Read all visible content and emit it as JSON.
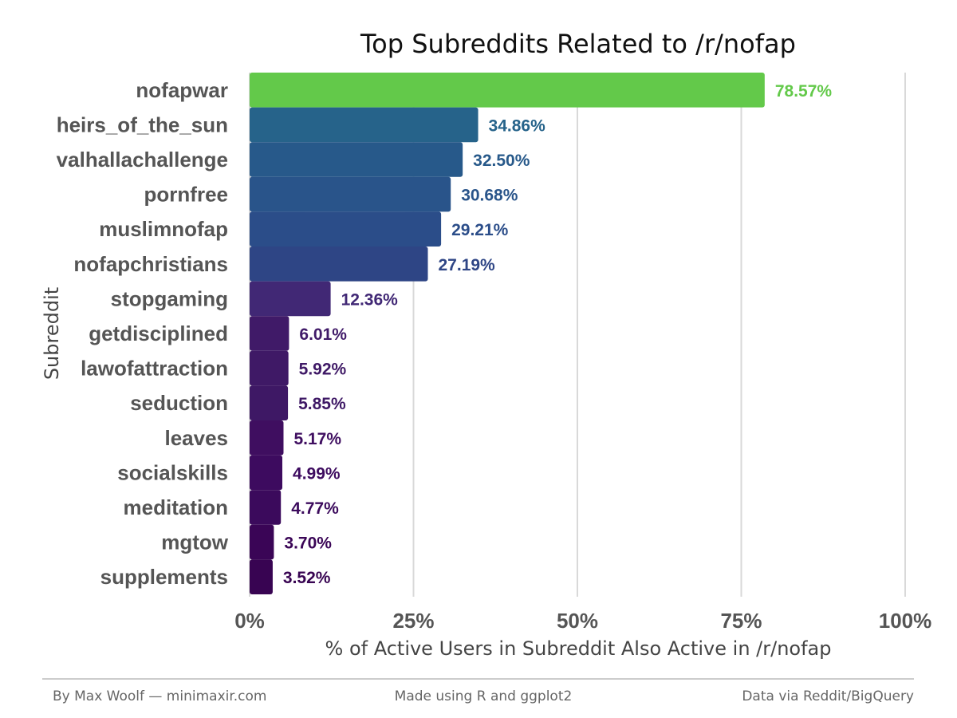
{
  "chart_data": {
    "type": "bar",
    "orientation": "horizontal",
    "title": "Top Subreddits Related to /r/nofap",
    "xlabel": "% of Active Users in Subreddit Also Active in /r/nofap",
    "ylabel": "Subreddit",
    "xlim": [
      0,
      100
    ],
    "x_ticks": [
      "0%",
      "25%",
      "50%",
      "75%",
      "100%"
    ],
    "categories": [
      "nofapwar",
      "heirs_of_the_sun",
      "valhallachallenge",
      "pornfree",
      "muslimnofap",
      "nofapchristians",
      "stopgaming",
      "getdisciplined",
      "lawofattraction",
      "seduction",
      "leaves",
      "socialskills",
      "meditation",
      "mgtow",
      "supplements"
    ],
    "values": [
      78.57,
      34.86,
      32.5,
      30.68,
      29.21,
      27.19,
      12.36,
      6.01,
      5.92,
      5.85,
      5.17,
      4.99,
      4.77,
      3.7,
      3.52
    ],
    "value_labels": [
      "78.57%",
      "34.86%",
      "32.50%",
      "30.68%",
      "29.21%",
      "27.19%",
      "12.36%",
      "6.01%",
      "5.92%",
      "5.85%",
      "5.17%",
      "4.99%",
      "4.77%",
      "3.70%",
      "3.52%"
    ],
    "bar_colors": [
      "#63c94a",
      "#26638a",
      "#27598a",
      "#29548a",
      "#2b4d89",
      "#2e4585",
      "#412875",
      "#401a68",
      "#3f1966",
      "#3e1865",
      "#3f0e60",
      "#3d0b5f",
      "#3b0a5c",
      "#3a0556",
      "#380452"
    ],
    "grid": "vertical major lines",
    "legend": "none"
  },
  "footer": {
    "left": "By Max Woolf — minimaxir.com",
    "center": "Made using R and ggplot2",
    "right": "Data via Reddit/BigQuery"
  },
  "colors": {
    "grid": "#d9d9d9",
    "text": "#555555",
    "footer_rule": "#bbbbbb"
  }
}
